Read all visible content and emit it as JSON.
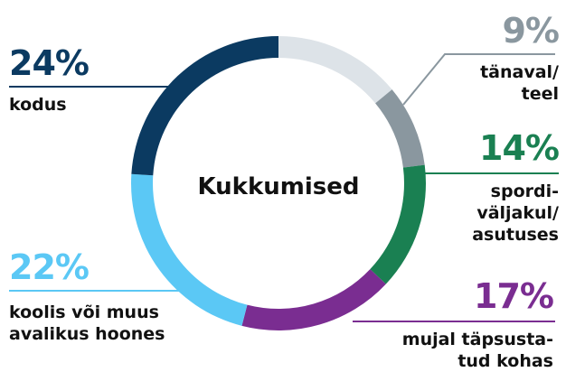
{
  "chart_data": {
    "type": "donut",
    "title": "Kukkumised",
    "categories": [
      null,
      "tänaval/\nteel",
      "spordi-\nväljakul/\nasutuses",
      "mujal täpsusta-\ntud kohas",
      "koolis või muus\navalikus hoones",
      "kodus"
    ],
    "values": [
      14,
      9,
      14,
      17,
      22,
      24
    ],
    "value_labels": [
      null,
      "9%",
      "14%",
      "17%",
      "22%",
      "24%"
    ],
    "colors": [
      "#dde3e8",
      "#8a979f",
      "#1a8052",
      "#7a2d91",
      "#5bc8f5",
      "#0b3a61"
    ]
  }
}
